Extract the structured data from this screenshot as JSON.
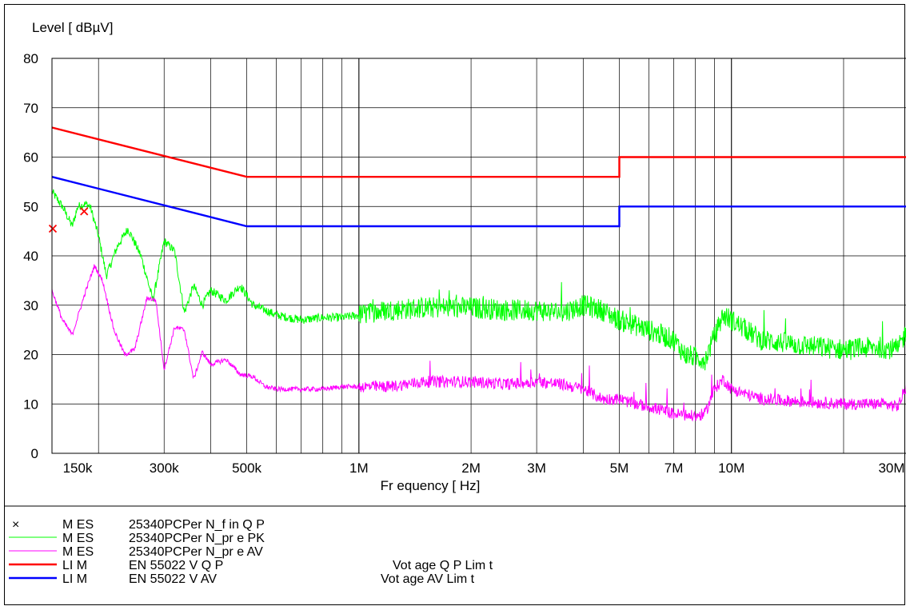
{
  "chart_data": {
    "type": "line",
    "ylabel": "Level [ dBµV]",
    "xlabel": "Fr equency [ Hz]",
    "x_scale": "log",
    "xlim": [
      150000,
      30000000
    ],
    "ylim": [
      0,
      80
    ],
    "y_ticks": [
      0,
      10,
      20,
      30,
      40,
      50,
      60,
      70,
      80
    ],
    "x_tick_labels": [
      {
        "value": 150000,
        "label": "150k"
      },
      {
        "value": 300000,
        "label": "300k"
      },
      {
        "value": 500000,
        "label": "500k"
      },
      {
        "value": 1000000,
        "label": "1M"
      },
      {
        "value": 2000000,
        "label": "2M"
      },
      {
        "value": 3000000,
        "label": "3M"
      },
      {
        "value": 5000000,
        "label": "5M"
      },
      {
        "value": 7000000,
        "label": "7M"
      },
      {
        "value": 10000000,
        "label": "10M"
      },
      {
        "value": 30000000,
        "label": "30M"
      }
    ],
    "grid": true,
    "series": [
      {
        "name": "M ES 25340PCPer N_f in Q P",
        "kind": "points",
        "color": "#ff0000",
        "x": [
          150000,
          183000
        ],
        "y": [
          45.5,
          49
        ]
      },
      {
        "name": "M ES 25340PCPer N_pr e PK",
        "kind": "noise",
        "color": "#00ff00",
        "x": [
          150000,
          160000,
          170000,
          176000,
          185000,
          190000,
          200000,
          210000,
          225000,
          240000,
          260000,
          280000,
          300000,
          320000,
          340000,
          360000,
          380000,
          400000,
          440000,
          480000,
          520000,
          560000,
          600000,
          700000,
          800000,
          900000,
          1000000,
          1200000,
          1500000,
          2000000,
          2500000,
          3000000,
          3500000,
          4000000,
          4500000,
          5000000,
          5500000,
          6000000,
          7000000,
          7500000,
          8500000,
          9500000,
          10000000,
          12000000,
          15000000,
          20000000,
          25000000,
          28000000,
          30000000
        ],
        "y": [
          53,
          50,
          46,
          50,
          50.5,
          50,
          44,
          36,
          42,
          45.5,
          40,
          31,
          43,
          41,
          28.5,
          34,
          30,
          33,
          31,
          34,
          30,
          29,
          28,
          27,
          27.5,
          27.5,
          28,
          29,
          29.5,
          29.5,
          29,
          29,
          28.5,
          30,
          29,
          27,
          26,
          25,
          23,
          20,
          19,
          28,
          27,
          23,
          22,
          21,
          21.5,
          21,
          26
        ],
        "noise_amp": 2.2
      },
      {
        "name": "M ES 25340PCPer N_pr e AV",
        "kind": "noise",
        "color": "#ff00ff",
        "x": [
          150000,
          160000,
          170000,
          185000,
          195000,
          205000,
          220000,
          235000,
          250000,
          270000,
          285000,
          300000,
          320000,
          340000,
          360000,
          380000,
          400000,
          440000,
          480000,
          520000,
          560000,
          600000,
          700000,
          800000,
          900000,
          1000000,
          1200000,
          1500000,
          2000000,
          2500000,
          3000000,
          3500000,
          4000000,
          4500000,
          5000000,
          5500000,
          6000000,
          7000000,
          8000000,
          8500000,
          9000000,
          9500000,
          10000000,
          12000000,
          15000000,
          20000000,
          25000000,
          28000000,
          30000000
        ],
        "y": [
          33,
          27,
          24,
          33,
          38,
          35,
          25,
          20,
          21,
          31.5,
          31,
          17,
          25.5,
          25,
          15,
          20.5,
          18,
          19,
          16,
          15.5,
          13.5,
          13,
          13,
          13,
          13.5,
          13.5,
          13.5,
          14.5,
          14.5,
          14,
          14.5,
          14,
          13,
          11,
          11,
          10,
          9.5,
          8,
          7.5,
          8,
          13,
          15,
          13,
          11,
          10.5,
          10,
          10,
          9.5,
          15
        ],
        "noise_amp": 1.2
      },
      {
        "name": "LI M EN 55022 V Q P",
        "kind": "limit",
        "color": "#ff0000",
        "x": [
          150000,
          500000,
          5000000,
          5000000,
          30000000
        ],
        "y": [
          66,
          56,
          56,
          60,
          60
        ]
      },
      {
        "name": "LI M EN 55022 V AV",
        "kind": "limit",
        "color": "#0000ff",
        "x": [
          150000,
          500000,
          5000000,
          5000000,
          30000000
        ],
        "y": [
          56,
          46,
          46,
          50,
          50
        ]
      }
    ]
  },
  "legend": [
    {
      "marker": "×",
      "prefix": "M ES",
      "name": "25340PCPer N_f in Q P",
      "note": "",
      "color": "#ff0000",
      "style": "cross"
    },
    {
      "marker": "",
      "prefix": "M ES",
      "name": "25340PCPer N_pr e PK",
      "note": "",
      "color": "#00ff00",
      "style": "thin"
    },
    {
      "marker": "",
      "prefix": "M ES",
      "name": "25340PCPer N_pr e AV",
      "note": "",
      "color": "#ff00ff",
      "style": "thin"
    },
    {
      "marker": "",
      "prefix": "LI M",
      "name": "EN 55022 V Q P",
      "note": "Vot age Q P Lim t",
      "color": "#ff0000",
      "style": "thick"
    },
    {
      "marker": "",
      "prefix": "LI M",
      "name": "EN 55022 V AV",
      "note": "Vot age AV Lim t",
      "color": "#0000ff",
      "style": "thick"
    }
  ]
}
